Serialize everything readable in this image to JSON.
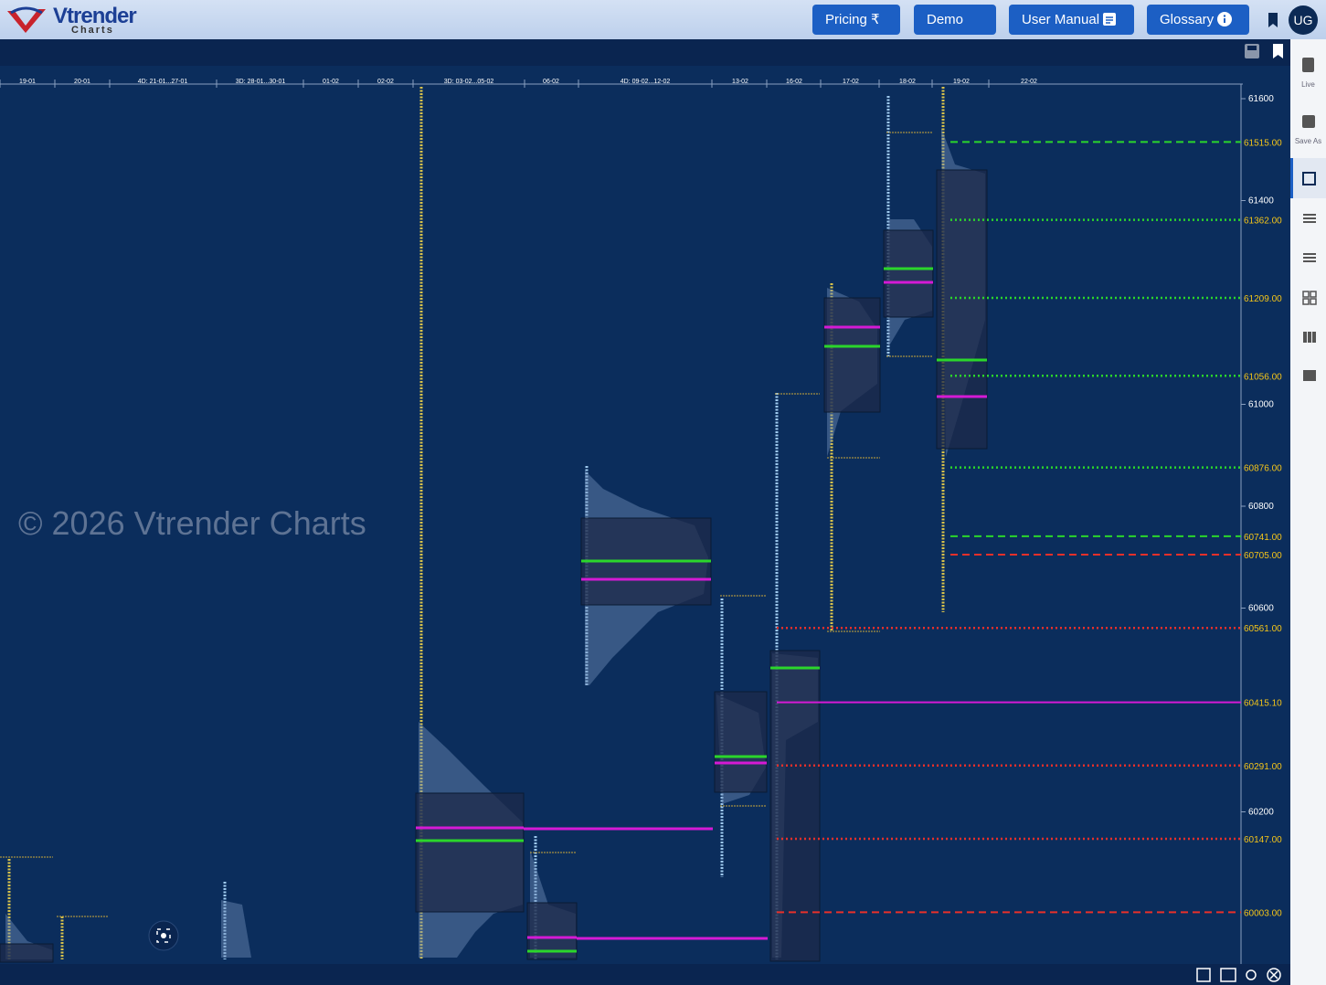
{
  "header": {
    "brand": "Vtrender",
    "brand_sub": "Charts",
    "nav": [
      "Pricing",
      "Demo",
      "User Manual",
      "Glossary"
    ],
    "avatar": "UG"
  },
  "sidebar": {
    "items": [
      "Live",
      "Save As"
    ]
  },
  "watermark": "© 2026 Vtrender Charts",
  "dates": [
    "19-01",
    "20-01",
    "4D: 21-01...27-01",
    "3D: 28-01...30-01",
    "01-02",
    "02-02",
    "3D: 03-02...05-02",
    "06-02",
    "4D: 09-02...12-02",
    "13-02",
    "16-02",
    "17-02",
    "18-02",
    "19-02",
    "22-02"
  ],
  "price_ticks": [
    "61600",
    "61400",
    "61000",
    "60800",
    "60600",
    "60200"
  ],
  "levels": [
    {
      "label": "61515.00",
      "color": "#2bd62b",
      "style": "dashed"
    },
    {
      "label": "61362.00",
      "color": "#2bd62b",
      "style": "dotted"
    },
    {
      "label": "61209.00",
      "color": "#2bd62b",
      "style": "dotted"
    },
    {
      "label": "61056.00",
      "color": "#2bd62b",
      "style": "dotted"
    },
    {
      "label": "60876.00",
      "color": "#2bd62b",
      "style": "dotted"
    },
    {
      "label": "60741.00",
      "color": "#2bd62b",
      "style": "dashed"
    },
    {
      "label": "60705.00",
      "color": "#e8302a",
      "style": "dashed"
    },
    {
      "label": "60561.00",
      "color": "#e8302a",
      "style": "dotted"
    },
    {
      "label": "60415.10",
      "color": "#d51ad5",
      "style": "solid"
    },
    {
      "label": "60291.00",
      "color": "#e8302a",
      "style": "dotted"
    },
    {
      "label": "60147.00",
      "color": "#e8302a",
      "style": "dotted"
    },
    {
      "label": "60003.00",
      "color": "#e8302a",
      "style": "dashed"
    }
  ]
}
